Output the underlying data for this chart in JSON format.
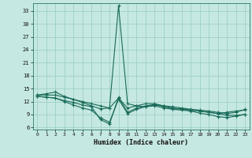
{
  "xlabel": "Humidex (Indice chaleur)",
  "bg_color": "#c5e8e2",
  "grid_color": "#9ecfc8",
  "line_color": "#1a6b5a",
  "xlim": [
    -0.5,
    23.5
  ],
  "ylim": [
    5.5,
    34.8
  ],
  "xticks": [
    0,
    1,
    2,
    3,
    4,
    5,
    6,
    7,
    8,
    9,
    10,
    11,
    12,
    13,
    14,
    15,
    16,
    17,
    18,
    19,
    20,
    21,
    22,
    23
  ],
  "yticks": [
    6,
    9,
    12,
    15,
    18,
    21,
    24,
    27,
    30,
    33
  ],
  "line1_x": [
    0,
    1,
    2,
    3,
    4,
    5,
    6,
    7,
    8,
    9,
    10,
    11,
    12,
    13,
    14,
    15,
    16,
    17,
    18,
    19,
    20,
    21,
    22,
    23
  ],
  "line1_y": [
    13.5,
    13.8,
    14.2,
    13.2,
    12.5,
    11.8,
    11.0,
    10.3,
    10.5,
    34.2,
    11.5,
    11.0,
    10.8,
    11.2,
    11.0,
    10.5,
    10.2,
    10.0,
    9.8,
    9.5,
    9.2,
    9.5,
    9.8,
    10.0
  ],
  "line2_x": [
    0,
    1,
    2,
    3,
    4,
    5,
    6,
    7,
    8,
    9,
    10,
    11,
    12,
    13,
    14,
    15,
    16,
    17,
    18,
    19,
    20,
    21,
    22,
    23
  ],
  "line2_y": [
    13.2,
    13.0,
    12.8,
    12.0,
    11.2,
    10.5,
    10.0,
    8.2,
    7.2,
    12.5,
    9.2,
    10.2,
    10.8,
    11.0,
    10.5,
    10.2,
    10.0,
    9.8,
    9.3,
    9.0,
    8.5,
    8.3,
    8.6,
    9.0
  ],
  "line3_x": [
    0,
    1,
    2,
    3,
    4,
    5,
    6,
    7,
    8,
    9,
    10,
    11,
    12,
    13,
    14,
    15,
    16,
    17,
    18,
    19,
    20,
    21,
    22,
    23
  ],
  "line3_y": [
    13.2,
    13.0,
    12.8,
    12.2,
    11.8,
    11.2,
    10.8,
    7.8,
    6.8,
    13.0,
    9.5,
    10.5,
    11.0,
    11.3,
    10.8,
    10.3,
    10.3,
    10.0,
    9.8,
    9.5,
    9.2,
    8.8,
    8.8,
    9.0
  ],
  "line4_x": [
    0,
    1,
    2,
    3,
    4,
    5,
    6,
    7,
    8,
    9,
    10,
    11,
    12,
    13,
    14,
    15,
    16,
    17,
    18,
    19,
    20,
    21,
    22,
    23
  ],
  "line4_y": [
    13.5,
    13.5,
    13.5,
    13.0,
    12.5,
    12.0,
    11.5,
    11.0,
    10.5,
    12.8,
    10.5,
    11.0,
    11.5,
    11.5,
    11.0,
    10.8,
    10.5,
    10.2,
    10.0,
    9.8,
    9.5,
    9.2,
    9.5,
    10.2
  ]
}
